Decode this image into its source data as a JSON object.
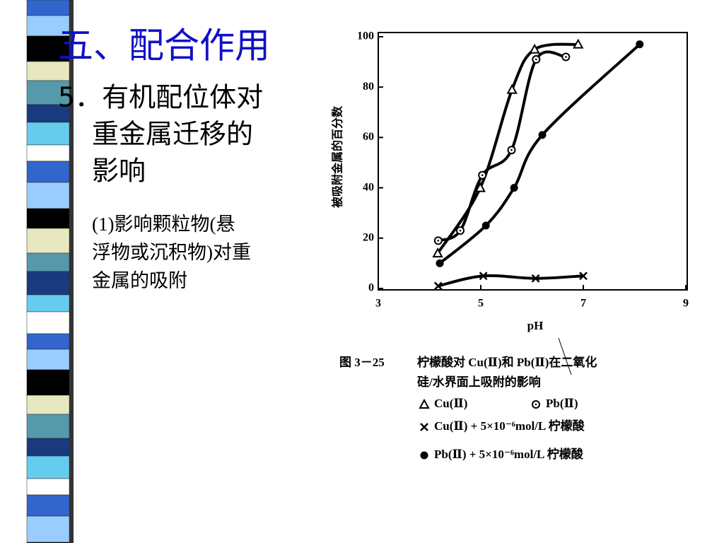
{
  "slide": {
    "title": "五、配合作用",
    "heading_lines": [
      "5．有机配位体对",
      "重金属迁移的",
      "影响"
    ],
    "body_lines": [
      "(1)影响颗粒物(悬",
      "浮物或沉积物)对重",
      "金属的吸附"
    ]
  },
  "chart_data": {
    "type": "line",
    "ylabel": "被吸附金属的百分数",
    "xlabel": "pH",
    "figure_number": "图 3－25",
    "caption_lines": [
      "柠檬酸对 Cu(Ⅱ)和 Pb(Ⅱ)在二氧化",
      "硅/水界面上吸附的影响"
    ],
    "xlim": [
      3,
      9
    ],
    "xticks": [
      3,
      5,
      7,
      9
    ],
    "ylim": [
      0,
      100
    ],
    "yticks": [
      0,
      20,
      40,
      60,
      80,
      100
    ],
    "series": [
      {
        "name": "Cu(Ⅱ)",
        "color": "#000000",
        "marker": "triangle",
        "x": [
          4.16,
          4.99,
          5.61,
          6.05,
          6.9
        ],
        "values": [
          14,
          40,
          79,
          95,
          97
        ]
      },
      {
        "name": "Pb(Ⅱ)",
        "color": "#000000",
        "marker": "dot-circle",
        "x": [
          4.17,
          4.6,
          5.03,
          5.6,
          6.08,
          6.66
        ],
        "values": [
          19,
          23,
          45,
          55,
          91,
          92
        ]
      },
      {
        "name": "Cu(Ⅱ) + 5×10⁻⁶mol/L 柠檬酸",
        "color": "#000000",
        "marker": "cross",
        "x": [
          4.17,
          5.05,
          6.07,
          7
        ],
        "values": [
          1,
          5,
          4,
          5
        ]
      },
      {
        "name": "Pb(Ⅱ) + 5×10⁻⁶mol/L 柠檬酸",
        "color": "#000000",
        "marker": "filled-circle",
        "x": [
          4.2,
          5.1,
          5.65,
          6.2,
          8.1
        ],
        "values": [
          10,
          25,
          40,
          61,
          97
        ]
      }
    ]
  }
}
